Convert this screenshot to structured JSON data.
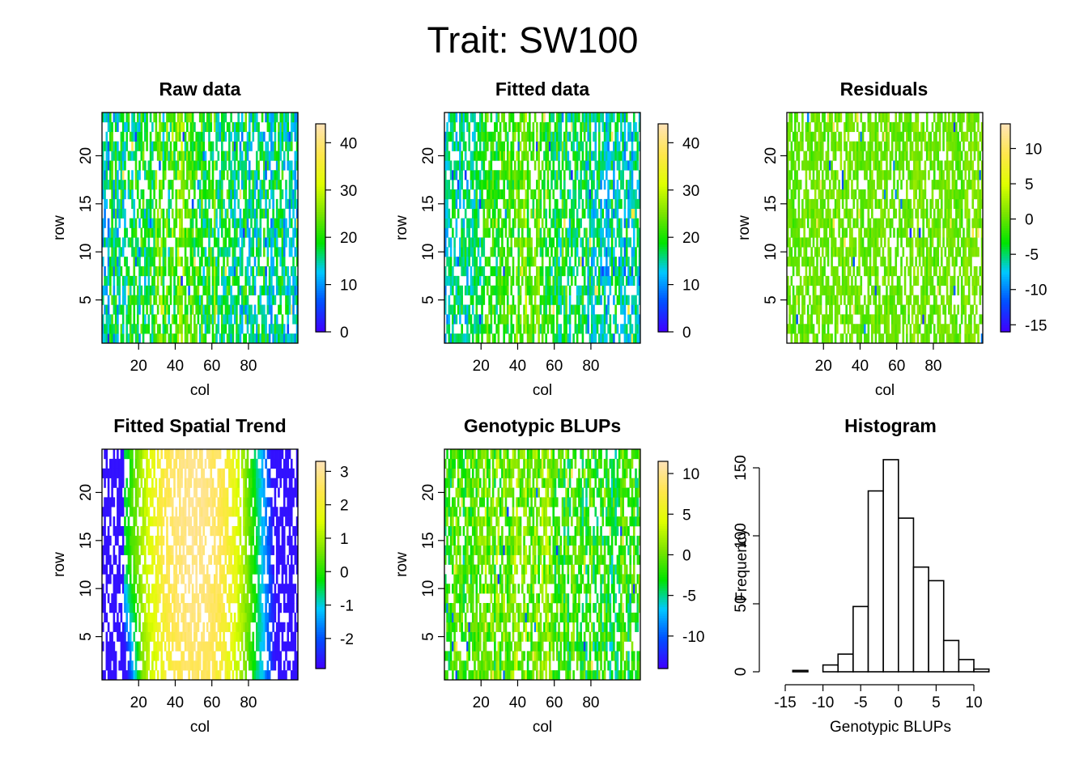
{
  "figure": {
    "title": "Trait: SW100"
  },
  "chart_data": [
    {
      "type": "heatmap",
      "title": "Raw data",
      "xlabel": "col",
      "ylabel": "row",
      "xlim": [
        0,
        107
      ],
      "ylim": [
        0.5,
        24.5
      ],
      "xticks": [
        "20",
        "40",
        "60",
        "80"
      ],
      "yticks": [
        "5",
        "10",
        "15",
        "20"
      ],
      "colorbar": {
        "min": 0,
        "max": 44,
        "ticks": [
          "0",
          "10",
          "20",
          "30",
          "40"
        ]
      },
      "pattern": {
        "level": 0.42,
        "spread": 0.22,
        "sign": 1,
        "band": 0.18,
        "missing": 0.3,
        "seed": 11
      }
    },
    {
      "type": "heatmap",
      "title": "Fitted data",
      "xlabel": "col",
      "ylabel": "row",
      "xlim": [
        0,
        107
      ],
      "ylim": [
        0.5,
        24.5
      ],
      "xticks": [
        "20",
        "40",
        "60",
        "80"
      ],
      "yticks": [
        "5",
        "10",
        "15",
        "20"
      ],
      "colorbar": {
        "min": 0,
        "max": 44,
        "ticks": [
          "0",
          "10",
          "20",
          "30",
          "40"
        ]
      },
      "pattern": {
        "level": 0.42,
        "spread": 0.18,
        "sign": 1,
        "band": 0.22,
        "missing": 0.3,
        "seed": 23
      }
    },
    {
      "type": "heatmap",
      "title": "Residuals",
      "xlabel": "col",
      "ylabel": "row",
      "xlim": [
        0,
        107
      ],
      "ylim": [
        0.5,
        24.5
      ],
      "xticks": [
        "20",
        "40",
        "60",
        "80"
      ],
      "yticks": [
        "5",
        "10",
        "15",
        "20"
      ],
      "colorbar": {
        "min": -16,
        "max": 13.5,
        "ticks": [
          "-15",
          "-10",
          "-5",
          "0",
          "5",
          "10"
        ]
      },
      "pattern": {
        "level": 0.55,
        "spread": 0.08,
        "sign": 0,
        "band": 0.0,
        "missing": 0.3,
        "seed": 37
      }
    },
    {
      "type": "heatmap",
      "title": "Fitted Spatial Trend",
      "xlabel": "col",
      "ylabel": "row",
      "xlim": [
        0,
        107
      ],
      "ylim": [
        0.5,
        24.5
      ],
      "xticks": [
        "20",
        "40",
        "60",
        "80"
      ],
      "yticks": [
        "5",
        "10",
        "15",
        "20"
      ],
      "colorbar": {
        "min": -2.9,
        "max": 3.3,
        "ticks": [
          "-2",
          "-1",
          "0",
          "1",
          "2",
          "3"
        ]
      },
      "pattern": {
        "trend": true,
        "missing": 0.3,
        "seed": 53
      }
    },
    {
      "type": "heatmap",
      "title": "Genotypic BLUPs",
      "xlabel": "col",
      "ylabel": "row",
      "xlim": [
        0,
        107
      ],
      "ylim": [
        0.5,
        24.5
      ],
      "xticks": [
        "20",
        "40",
        "60",
        "80"
      ],
      "yticks": [
        "5",
        "10",
        "15",
        "20"
      ],
      "colorbar": {
        "min": -14,
        "max": 11.5,
        "ticks": [
          "-10",
          "-5",
          "0",
          "5",
          "10"
        ]
      },
      "pattern": {
        "level": 0.52,
        "spread": 0.2,
        "sign": 1,
        "band": 0.12,
        "missing": 0.3,
        "seed": 71
      }
    },
    {
      "type": "bar",
      "title": "Histogram",
      "xlabel": "Genotypic BLUPs",
      "ylabel": "Frequency",
      "xlim": [
        -15,
        12
      ],
      "ylim": [
        0,
        160
      ],
      "xticks": [
        "-15",
        "-10",
        "-5",
        "0",
        "5",
        "10"
      ],
      "yticks": [
        "0",
        "50",
        "100",
        "150"
      ],
      "bins": [
        {
          "from": -14,
          "to": -12,
          "count": 1
        },
        {
          "from": -12,
          "to": -10,
          "count": 0
        },
        {
          "from": -10,
          "to": -8,
          "count": 5
        },
        {
          "from": -8,
          "to": -6,
          "count": 13
        },
        {
          "from": -6,
          "to": -4,
          "count": 48
        },
        {
          "from": -4,
          "to": -2,
          "count": 133
        },
        {
          "from": -2,
          "to": 0,
          "count": 156
        },
        {
          "from": 0,
          "to": 2,
          "count": 113
        },
        {
          "from": 2,
          "to": 4,
          "count": 77
        },
        {
          "from": 4,
          "to": 6,
          "count": 67
        },
        {
          "from": 6,
          "to": 8,
          "count": 23
        },
        {
          "from": 8,
          "to": 10,
          "count": 9
        },
        {
          "from": 10,
          "to": 12,
          "count": 2
        }
      ]
    }
  ],
  "palette": [
    "#3f00ff",
    "#0050ff",
    "#00c8ff",
    "#00e400",
    "#7ce400",
    "#dfff00",
    "#ffe64a",
    "#ffe3b3"
  ]
}
